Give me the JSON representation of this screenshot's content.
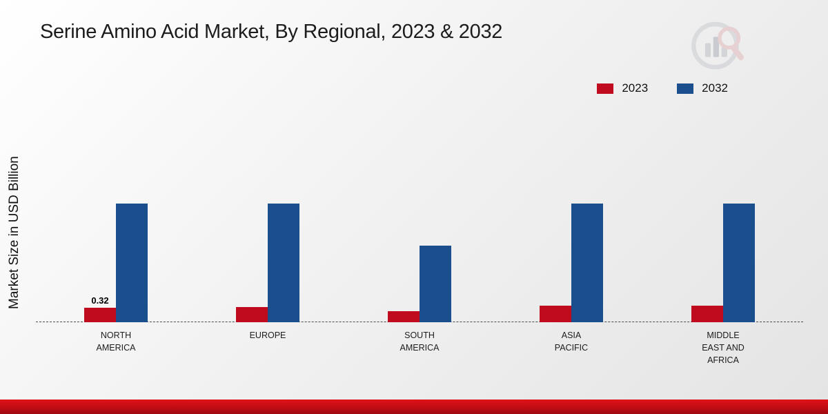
{
  "title": "Serine Amino Acid Market, By Regional, 2023 & 2032",
  "y_axis_label": "Market Size in USD Billion",
  "legend": [
    {
      "label": "2023",
      "color": "#c00a1e"
    },
    {
      "label": "2032",
      "color": "#1a4e8c"
    }
  ],
  "colors": {
    "series_2023": "#c00a1e",
    "series_2032": "#1a4e8c",
    "footer_red": "#c00d14"
  },
  "chart_data": {
    "type": "bar",
    "title": "Serine Amino Acid Market, By Regional, 2023 & 2032",
    "xlabel": "",
    "ylabel": "Market Size in USD Billion",
    "categories": [
      "NORTH AMERICA",
      "EUROPE",
      "SOUTH AMERICA",
      "ASIA PACIFIC",
      "MIDDLE EAST AND AFRICA"
    ],
    "series": [
      {
        "name": "2023",
        "color": "#c00a1e",
        "values": [
          0.32,
          0.33,
          0.24,
          0.36,
          0.36
        ]
      },
      {
        "name": "2032",
        "color": "#1a4e8c",
        "values": [
          2.6,
          2.6,
          1.68,
          2.6,
          2.6
        ]
      }
    ],
    "annotations": [
      {
        "series": "2023",
        "category": "NORTH AMERICA",
        "text": "0.32"
      }
    ],
    "ylim": [
      0,
      3.5
    ],
    "grid": false,
    "axis_style": "dashed-baseline-only",
    "legend_position": "top-right"
  }
}
